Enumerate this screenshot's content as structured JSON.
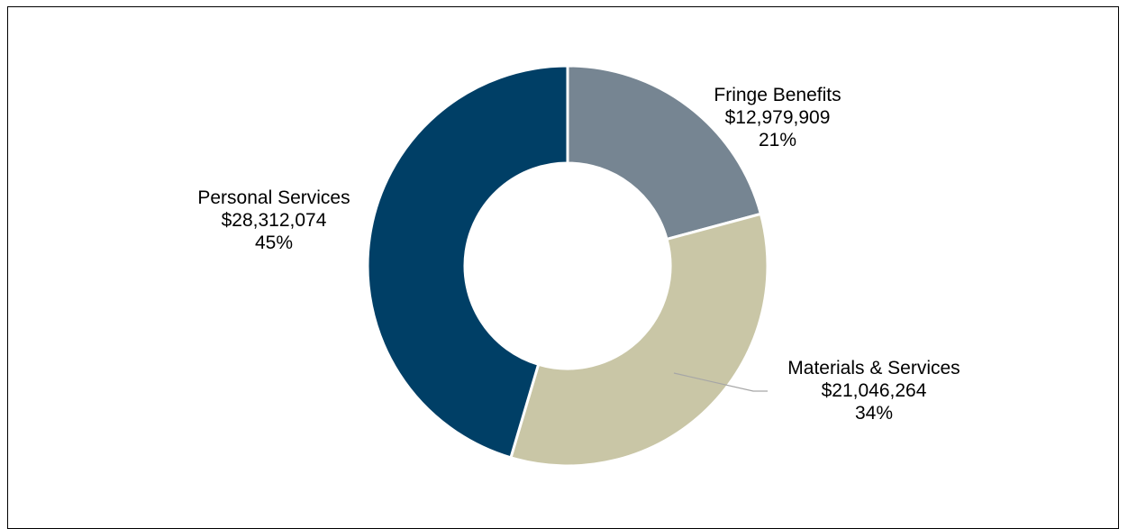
{
  "chart_data": {
    "type": "pie",
    "variant": "donut",
    "title": "",
    "legend": "none",
    "slices": [
      {
        "label": "Fringe Benefits",
        "value": 12979909,
        "value_label": "$12,979,909",
        "percent_label": "21%",
        "color": "#768592"
      },
      {
        "label": "Materials & Services",
        "value": 21046264,
        "value_label": "$21,046,264",
        "percent_label": "34%",
        "color": "#c9c6a6"
      },
      {
        "label": "Personal Services",
        "value": 28312074,
        "value_label": "$28,312,074",
        "percent_label": "45%",
        "color": "#003f66"
      }
    ]
  }
}
